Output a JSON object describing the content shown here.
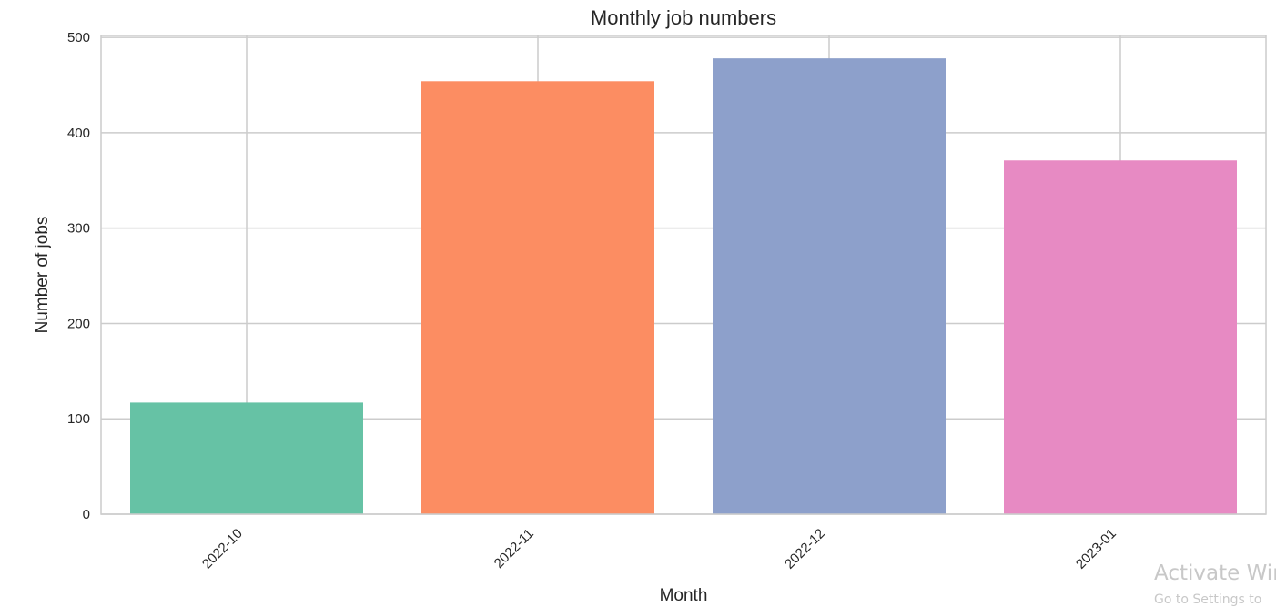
{
  "chart_data": {
    "type": "bar",
    "title": "Monthly job numbers",
    "xlabel": "Month",
    "ylabel": "Number of jobs",
    "categories": [
      "2022-10",
      "2022-11",
      "2022-12",
      "2023-01"
    ],
    "values": [
      117,
      454,
      478,
      371
    ],
    "bar_colors": [
      "#66c2a5",
      "#fc8d62",
      "#8da0cb",
      "#e78ac3"
    ],
    "ylim": [
      0,
      502
    ],
    "yticks": [
      0,
      100,
      200,
      300,
      400,
      500
    ],
    "grid": true,
    "legend": "none"
  },
  "watermark": {
    "line1": "Activate Wir",
    "line2": "Go to Settings to"
  }
}
